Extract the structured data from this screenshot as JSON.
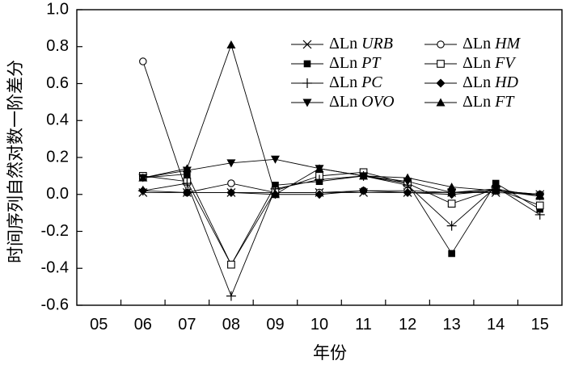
{
  "chart_data": {
    "type": "line",
    "title": "",
    "xlabel": "年份",
    "ylabel": "时间序列自然对数一阶差分",
    "categories": [
      "05",
      "06",
      "07",
      "08",
      "09",
      "10",
      "11",
      "12",
      "13",
      "14",
      "15"
    ],
    "ylim": [
      -0.6,
      1.0
    ],
    "yticks": [
      "-0.6",
      "-0.4",
      "-0.2",
      "0.0",
      "0.2",
      "0.4",
      "0.6",
      "0.8",
      "1.0"
    ],
    "grid": false,
    "legend_position": "top-right",
    "series": [
      {
        "name": "URB",
        "marker": "cross",
        "values": [
          null,
          0.01,
          0.01,
          0.01,
          0.01,
          0.01,
          0.01,
          0.01,
          0.01,
          0.01,
          0.0
        ]
      },
      {
        "name": "HM",
        "marker": "open-circle",
        "values": [
          null,
          0.72,
          0.01,
          0.06,
          0.01,
          0.01,
          0.02,
          0.02,
          0.01,
          0.02,
          0.0
        ]
      },
      {
        "name": "PT",
        "marker": "filled-square",
        "values": [
          null,
          0.09,
          0.11,
          -0.38,
          0.05,
          0.07,
          0.1,
          0.06,
          -0.32,
          0.06,
          -0.08
        ]
      },
      {
        "name": "FV",
        "marker": "open-square",
        "values": [
          null,
          0.1,
          0.07,
          -0.38,
          0.02,
          0.1,
          0.12,
          0.06,
          -0.05,
          0.03,
          -0.06
        ]
      },
      {
        "name": "PC",
        "marker": "plus",
        "values": [
          null,
          0.02,
          0.06,
          -0.55,
          0.03,
          0.08,
          0.1,
          0.05,
          -0.17,
          0.04,
          -0.11
        ]
      },
      {
        "name": "HD",
        "marker": "filled-diamond",
        "values": [
          null,
          0.02,
          0.01,
          0.01,
          0.0,
          0.0,
          0.02,
          0.01,
          0.0,
          0.02,
          0.0
        ]
      },
      {
        "name": "OVO",
        "marker": "filled-tri-down",
        "values": [
          null,
          0.09,
          0.13,
          0.17,
          0.19,
          0.14,
          0.1,
          0.07,
          0.01,
          0.03,
          -0.01
        ]
      },
      {
        "name": "FT",
        "marker": "filled-tri-up",
        "values": [
          null,
          0.09,
          0.14,
          0.81,
          0.0,
          0.14,
          0.1,
          0.09,
          0.04,
          0.02,
          -0.01
        ]
      }
    ],
    "legend": [
      {
        "prefix": "ΔLn",
        "name": "URB",
        "marker": "cross"
      },
      {
        "prefix": "ΔLn",
        "name": "HM",
        "marker": "open-circle"
      },
      {
        "prefix": "ΔLn",
        "name": "PT",
        "marker": "filled-square"
      },
      {
        "prefix": "ΔLn",
        "name": "FV",
        "marker": "open-square"
      },
      {
        "prefix": "ΔLn",
        "name": "PC",
        "marker": "plus"
      },
      {
        "prefix": "ΔLn",
        "name": "HD",
        "marker": "filled-diamond"
      },
      {
        "prefix": "ΔLn",
        "name": "OVO",
        "marker": "filled-tri-down"
      },
      {
        "prefix": "ΔLn",
        "name": "FT",
        "marker": "filled-tri-up"
      }
    ]
  }
}
